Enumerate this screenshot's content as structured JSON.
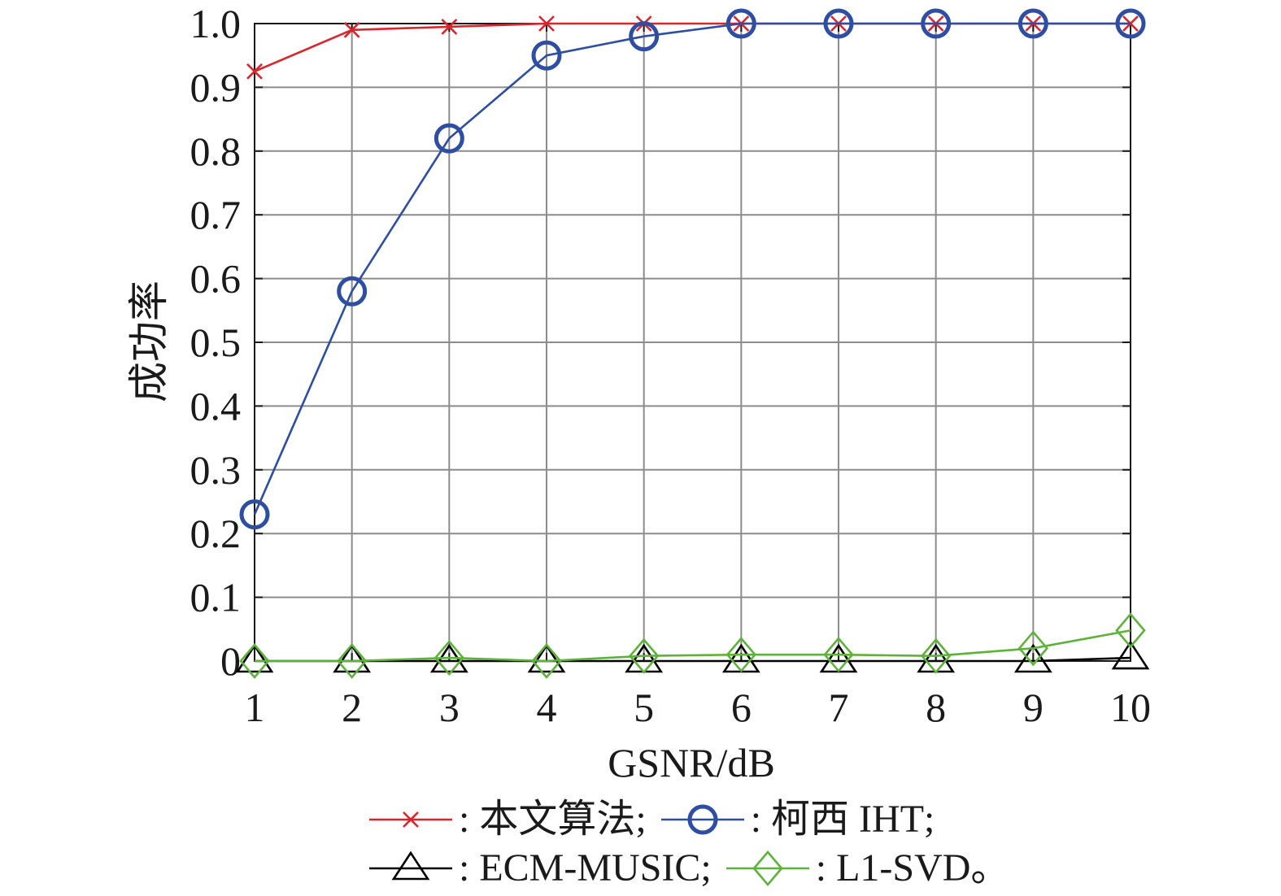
{
  "chart_data": {
    "type": "line",
    "xlabel": "GSNR/dB",
    "ylabel": "成功率",
    "x": [
      1,
      2,
      3,
      4,
      5,
      6,
      7,
      8,
      9,
      10
    ],
    "xlim": [
      1,
      10
    ],
    "ylim": [
      0,
      1
    ],
    "xtick_labels": [
      "1",
      "2",
      "3",
      "4",
      "5",
      "6",
      "7",
      "8",
      "9",
      "10"
    ],
    "ytick_labels": [
      "0",
      "0.1",
      "0.2",
      "0.3",
      "0.4",
      "0.5",
      "0.6",
      "0.7",
      "0.8",
      "0.9",
      "1.0"
    ],
    "grid": true,
    "legend": {
      "position": "bottom",
      "separator": ":"
    },
    "series": [
      {
        "name": "本文算法",
        "legend_suffix": ";",
        "color": "#d9262c",
        "marker": "x",
        "values": [
          0.925,
          0.99,
          0.995,
          1.0,
          1.0,
          1.0,
          1.0,
          1.0,
          1.0,
          1.0
        ]
      },
      {
        "name": "柯西 IHT",
        "legend_suffix": ";",
        "color": "#2d4ea3",
        "marker": "circle",
        "values": [
          0.23,
          0.58,
          0.82,
          0.95,
          0.98,
          1.0,
          1.0,
          1.0,
          1.0,
          1.0
        ]
      },
      {
        "name": "ECM-MUSIC",
        "legend_suffix": ";",
        "color": "#000000",
        "marker": "triangle",
        "values": [
          0,
          0,
          0,
          0,
          0,
          0,
          0,
          0,
          0,
          0.005
        ]
      },
      {
        "name": "L1-SVD",
        "legend_suffix": "。",
        "color": "#5db33a",
        "marker": "diamond",
        "values": [
          0,
          0,
          0.005,
          0,
          0.008,
          0.01,
          0.01,
          0.008,
          0.02,
          0.048
        ]
      }
    ]
  }
}
